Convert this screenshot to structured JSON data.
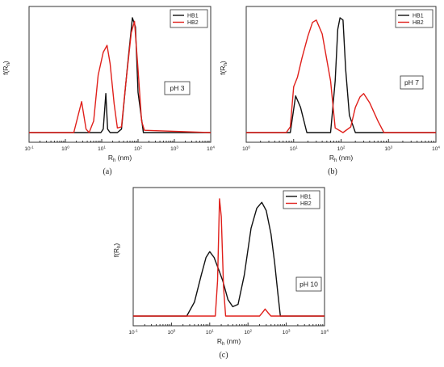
{
  "colors": {
    "HB1": "#111111",
    "HB2": "#e0201b"
  },
  "chart_data": [
    {
      "type": "line",
      "panel_label": "(a)",
      "xlabel": "Rh (nm)",
      "ylabel": "f(Rh)",
      "x_scale": "log",
      "xlim": [
        0.1,
        10000
      ],
      "x_ticks": [
        "10⁻¹",
        "10⁰",
        "10¹",
        "10²",
        "10³",
        "10⁴"
      ],
      "ylim": [
        0,
        1
      ],
      "annotation": "pH 3",
      "legend": "top-right",
      "series": [
        {
          "name": "HB1",
          "x": [
            0.1,
            5.0,
            9.5,
            11,
            13,
            14.5,
            17,
            27,
            35,
            50,
            70,
            85,
            100,
            140,
            170,
            10000
          ],
          "y": [
            0,
            0,
            0,
            0.03,
            0.34,
            0.03,
            0,
            0,
            0.03,
            0.55,
            1.0,
            0.92,
            0.35,
            0,
            0,
            0
          ]
        },
        {
          "name": "HB2",
          "x": [
            0.1,
            1.7,
            2.8,
            3.7,
            4.5,
            6,
            8,
            11,
            14,
            17,
            22,
            27,
            35,
            45,
            65,
            80,
            100,
            125,
            150,
            10000
          ],
          "y": [
            0,
            0,
            0.27,
            0.03,
            0,
            0.1,
            0.5,
            0.7,
            0.76,
            0.6,
            0.25,
            0.04,
            0.05,
            0.4,
            0.87,
            0.97,
            0.55,
            0.1,
            0.02,
            0
          ]
        }
      ]
    },
    {
      "type": "line",
      "panel_label": "(b)",
      "xlabel": "Rh (nm)",
      "ylabel": "f(Rh)",
      "x_scale": "log",
      "xlim": [
        1,
        10000
      ],
      "x_ticks": [
        "10⁰",
        "10¹",
        "10²",
        "10³",
        "10⁴"
      ],
      "ylim": [
        0,
        1
      ],
      "annotation": "pH 7",
      "legend": "top-right",
      "series": [
        {
          "name": "HB1",
          "x": [
            1,
            8.5,
            11,
            14,
            19,
            60,
            75,
            85,
            95,
            110,
            125,
            150,
            200,
            10000
          ],
          "y": [
            0,
            0,
            0.32,
            0.22,
            0,
            0,
            0.45,
            0.9,
            1.0,
            0.98,
            0.55,
            0.15,
            0,
            0
          ]
        },
        {
          "name": "HB2",
          "x": [
            1,
            7,
            8.5,
            10,
            12,
            15,
            20,
            25,
            30,
            40,
            60,
            75,
            110,
            160,
            200,
            250,
            300,
            400,
            600,
            800,
            10000
          ],
          "y": [
            0,
            0,
            0.05,
            0.4,
            0.48,
            0.65,
            0.84,
            0.96,
            0.98,
            0.86,
            0.45,
            0.04,
            0,
            0.05,
            0.22,
            0.31,
            0.34,
            0.26,
            0.1,
            0,
            0
          ]
        }
      ]
    },
    {
      "type": "line",
      "panel_label": "(c)",
      "xlabel": "Rh (nm)",
      "ylabel": "f(Rh)",
      "x_scale": "log",
      "xlim": [
        0.1,
        10000
      ],
      "x_ticks": [
        "10⁻¹",
        "10⁰",
        "10¹",
        "10²",
        "10³",
        "10⁴"
      ],
      "ylim": [
        0,
        1
      ],
      "annotation": "pH 10",
      "legend": "top-right",
      "series": [
        {
          "name": "HB1",
          "x": [
            0.1,
            2.5,
            4,
            6,
            8,
            10,
            13,
            17,
            22,
            30,
            40,
            55,
            80,
            120,
            170,
            230,
            300,
            400,
            500,
            600,
            700,
            10000
          ],
          "y": [
            0,
            0,
            0.12,
            0.35,
            0.5,
            0.55,
            0.5,
            0.4,
            0.3,
            0.14,
            0.08,
            0.1,
            0.35,
            0.75,
            0.92,
            0.97,
            0.9,
            0.7,
            0.45,
            0.2,
            0,
            0
          ]
        },
        {
          "name": "HB2",
          "x": [
            0.1,
            14,
            16,
            18,
            20,
            23,
            26,
            200,
            240,
            280,
            330,
            400,
            10000
          ],
          "y": [
            0,
            0,
            0.3,
            1.0,
            0.85,
            0.25,
            0,
            0,
            0.03,
            0.06,
            0.03,
            0,
            0
          ]
        }
      ]
    }
  ]
}
